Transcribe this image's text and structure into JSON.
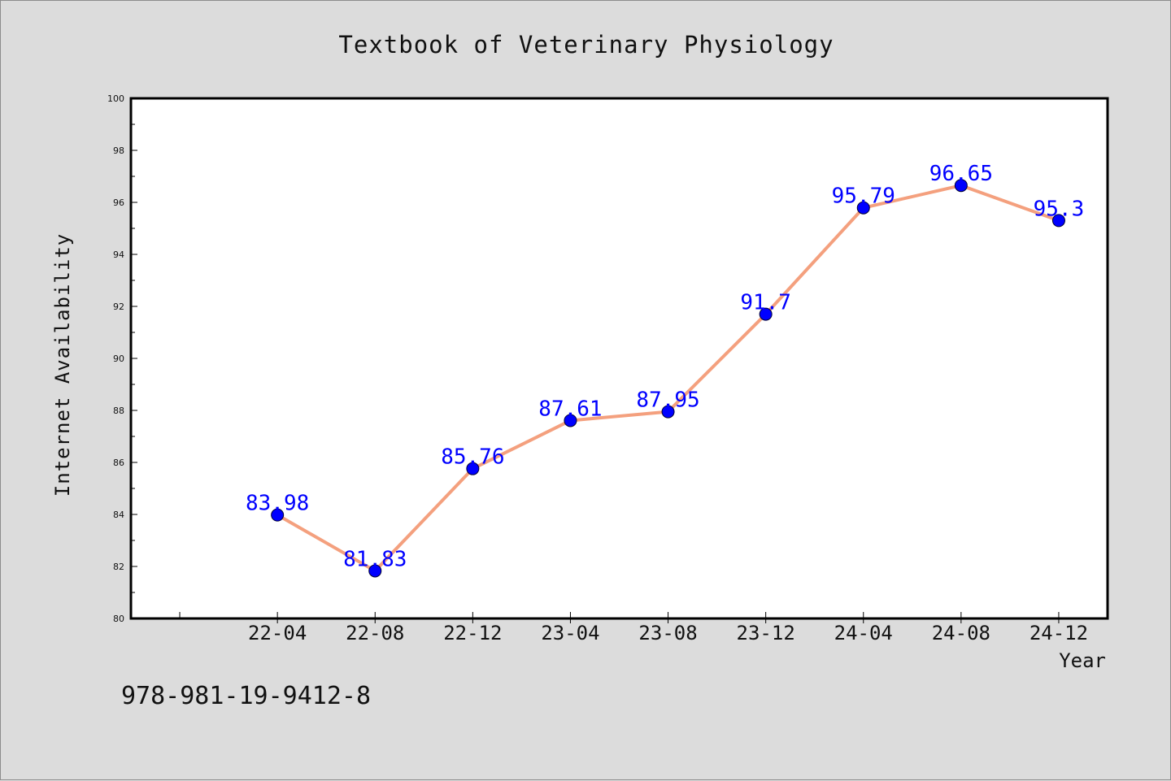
{
  "chart_data": {
    "type": "line",
    "title": "Textbook of Veterinary Physiology",
    "xlabel": "Year",
    "ylabel": "Internet Availability",
    "categories": [
      "22-04",
      "22-08",
      "22-12",
      "23-04",
      "23-08",
      "23-12",
      "24-04",
      "24-08",
      "24-12"
    ],
    "series": [
      {
        "values": [
          83.98,
          81.83,
          85.76,
          87.61,
          87.95,
          91.7,
          95.79,
          96.65,
          95.3
        ]
      }
    ],
    "data_labels": [
      "83.98",
      "81.83",
      "85.76",
      "87.61",
      "87.95",
      "91.7",
      "95.79",
      "96.65",
      "95.3"
    ],
    "ylim": [
      80,
      100
    ],
    "yticks": [
      80,
      82,
      84,
      86,
      88,
      90,
      92,
      94,
      96,
      98,
      100
    ],
    "grid": false,
    "line_color": "#f4a07e",
    "marker_color": "#0000ff",
    "label_color": "#0000ff"
  },
  "footer": {
    "code": "978-981-19-9412-8"
  }
}
